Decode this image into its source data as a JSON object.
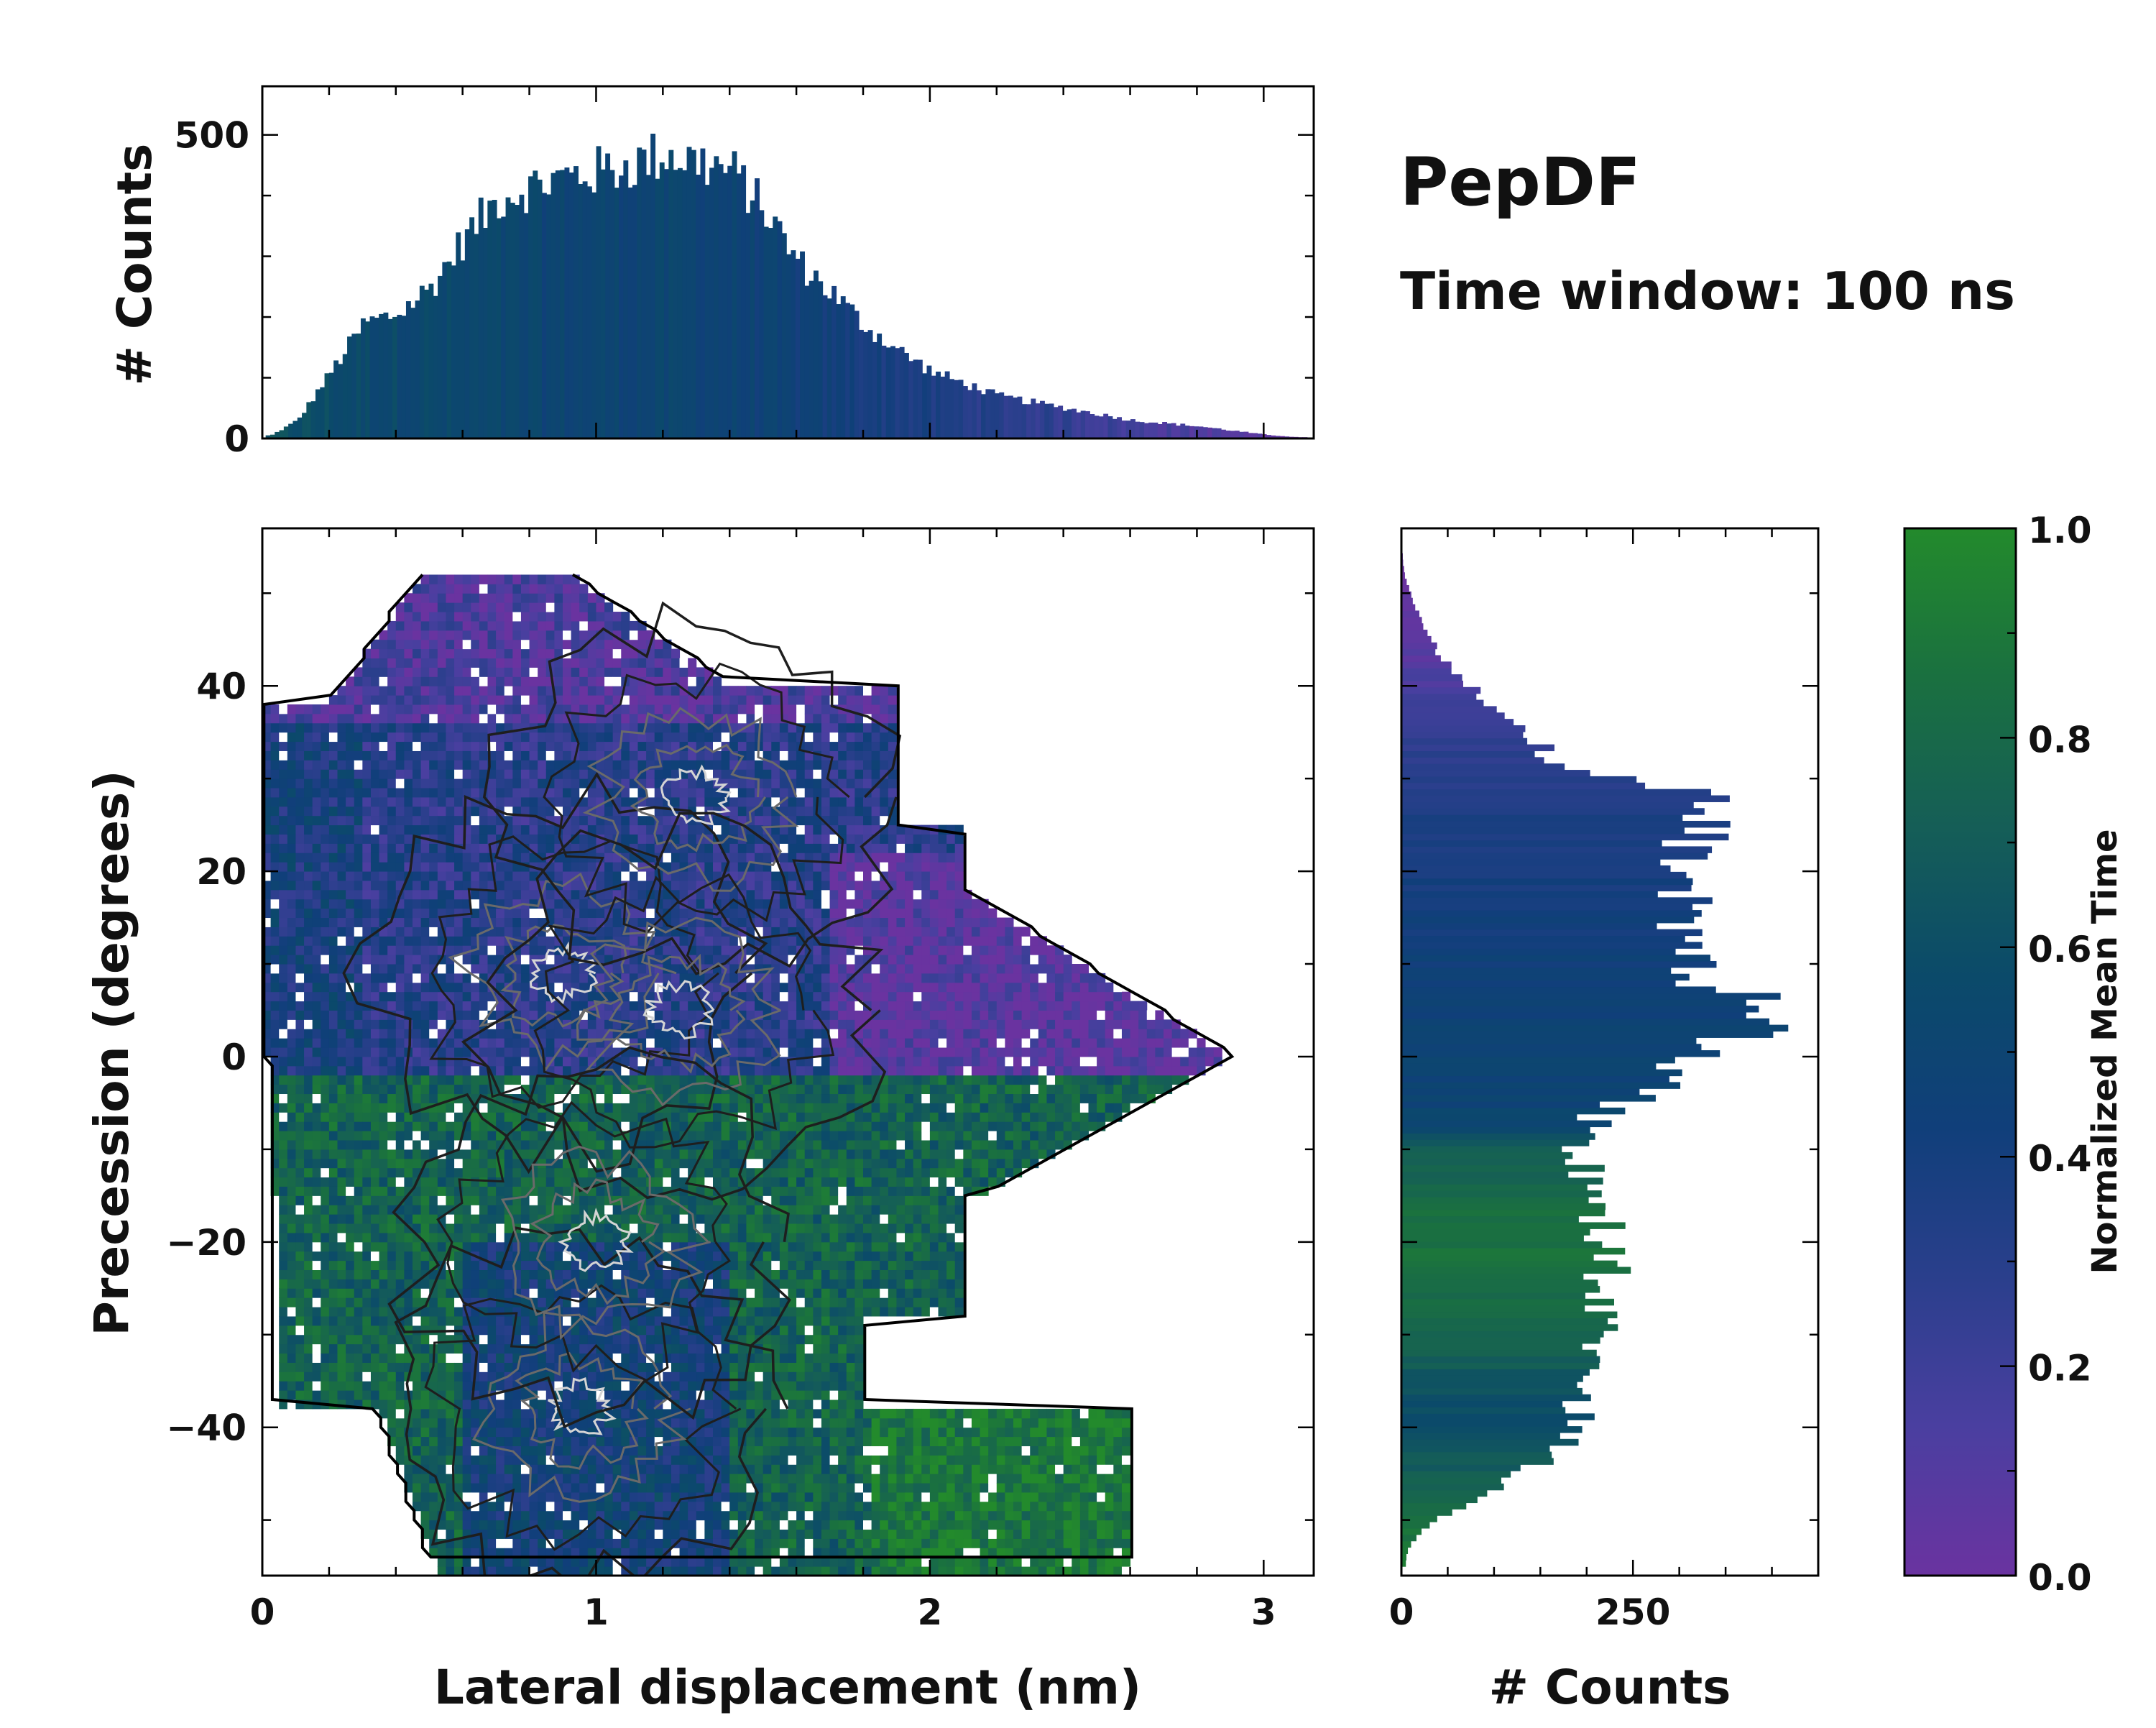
{
  "figure": {
    "title": "PepDF",
    "subtitle": "Time window: 100 ns"
  },
  "colors": {
    "scale": [
      "#6a33a0",
      "#4a3fa0",
      "#2a3f8c",
      "#103f7a",
      "#0b4a6a",
      "#155e57",
      "#1a7040",
      "#238a2c"
    ],
    "contour_dark": "#1e1e1e",
    "contour_mid": "#6a6a6a",
    "contour_light": "#d4d4d4",
    "frame": "#000000"
  },
  "chart_data": [
    {
      "id": "top_histogram",
      "type": "bar",
      "title": "",
      "xlabel": "",
      "ylabel": "# Counts",
      "xlim": [
        0,
        3.15
      ],
      "ylim": [
        0,
        580
      ],
      "yticks": [
        0,
        500
      ],
      "ytick_labels": [
        "0",
        "500"
      ],
      "profile": {
        "x": [
          0.02,
          0.1,
          0.2,
          0.3,
          0.4,
          0.5,
          0.6,
          0.7,
          0.8,
          0.9,
          1.0,
          1.1,
          1.2,
          1.3,
          1.4,
          1.5,
          1.6,
          1.7,
          1.8,
          1.9,
          2.0,
          2.2,
          2.4,
          2.6,
          2.8,
          3.0,
          3.1
        ],
        "counts": [
          5,
          30,
          110,
          190,
          205,
          250,
          330,
          395,
          415,
          430,
          440,
          450,
          470,
          455,
          440,
          375,
          290,
          240,
          185,
          145,
          110,
          70,
          50,
          30,
          20,
          6,
          2
        ],
        "color_value": [
          0.62,
          0.6,
          0.58,
          0.55,
          0.55,
          0.54,
          0.52,
          0.52,
          0.5,
          0.5,
          0.5,
          0.5,
          0.5,
          0.5,
          0.48,
          0.46,
          0.44,
          0.42,
          0.4,
          0.38,
          0.35,
          0.3,
          0.25,
          0.18,
          0.12,
          0.05,
          0.02
        ]
      }
    },
    {
      "id": "main_2d_histogram",
      "type": "heatmap",
      "title": "",
      "xlabel": "Lateral displacement (nm)",
      "ylabel": "Precession (degrees)",
      "xlim": [
        0,
        3.15
      ],
      "ylim": [
        -56,
        57
      ],
      "xticks": [
        0,
        1,
        2,
        3
      ],
      "xtick_labels": [
        "0",
        "1",
        "2",
        "3"
      ],
      "yticks": [
        -40,
        -20,
        0,
        20,
        40
      ],
      "ytick_labels": [
        "−40",
        "−20",
        "0",
        "20",
        "40"
      ],
      "color_label": "Normalized Mean Time",
      "regions": [
        {
          "name": "upper-left mixed",
          "x_range": [
            0.0,
            1.9
          ],
          "y_range": [
            0,
            55
          ],
          "mean_time": 0.3
        },
        {
          "name": "right purple lobe",
          "x_range": [
            1.6,
            3.1
          ],
          "y_range": [
            -15,
            25
          ],
          "mean_time": 0.05
        },
        {
          "name": "lower green lobe",
          "x_range": [
            0.05,
            2.5
          ],
          "y_range": [
            -54,
            0
          ],
          "mean_time": 0.85
        }
      ],
      "density_peaks": [
        {
          "x": 0.9,
          "y": 9
        },
        {
          "x": 1.3,
          "y": 28
        },
        {
          "x": 1.25,
          "y": 5
        },
        {
          "x": 0.95,
          "y": -38
        },
        {
          "x": 1.0,
          "y": -20
        }
      ]
    },
    {
      "id": "side_histogram",
      "type": "bar",
      "title": "",
      "xlabel": "# Counts",
      "ylabel": "",
      "xlim": [
        0,
        450
      ],
      "ylim": [
        -56,
        57
      ],
      "xticks": [
        0,
        250
      ],
      "xtick_labels": [
        "0",
        "250"
      ],
      "profile": {
        "y": [
          -54,
          -52,
          -50,
          -48,
          -46,
          -44,
          -42,
          -40,
          -38,
          -36,
          -34,
          -32,
          -30,
          -28,
          -26,
          -24,
          -22,
          -20,
          -18,
          -16,
          -14,
          -12,
          -10,
          -8,
          -6,
          -4,
          -2,
          0,
          2,
          4,
          6,
          8,
          10,
          12,
          14,
          16,
          18,
          20,
          22,
          24,
          26,
          28,
          30,
          32,
          34,
          36,
          38,
          40,
          42,
          44,
          46,
          48,
          50,
          52,
          54
        ],
        "counts": [
          5,
          18,
          40,
          80,
          120,
          150,
          175,
          185,
          190,
          200,
          205,
          208,
          212,
          218,
          215,
          220,
          225,
          220,
          215,
          210,
          205,
          200,
          195,
          200,
          225,
          270,
          300,
          320,
          360,
          400,
          370,
          325,
          300,
          295,
          300,
          300,
          305,
          320,
          310,
          320,
          350,
          320,
          220,
          160,
          150,
          120,
          90,
          70,
          50,
          35,
          25,
          15,
          8,
          3,
          1
        ],
        "color_value": [
          0.9,
          0.88,
          0.85,
          0.8,
          0.75,
          0.68,
          0.62,
          0.6,
          0.6,
          0.62,
          0.68,
          0.74,
          0.78,
          0.8,
          0.82,
          0.84,
          0.85,
          0.86,
          0.85,
          0.82,
          0.78,
          0.74,
          0.7,
          0.55,
          0.5,
          0.48,
          0.48,
          0.48,
          0.47,
          0.46,
          0.45,
          0.45,
          0.44,
          0.42,
          0.42,
          0.42,
          0.4,
          0.4,
          0.38,
          0.36,
          0.35,
          0.33,
          0.3,
          0.28,
          0.25,
          0.22,
          0.18,
          0.14,
          0.1,
          0.07,
          0.05,
          0.03,
          0.02,
          0.01,
          0.0
        ]
      }
    },
    {
      "id": "colorbar",
      "type": "colorbar",
      "title": "",
      "label": "Normalized Mean Time",
      "ylim": [
        0,
        1
      ],
      "ticks": [
        0.0,
        0.2,
        0.4,
        0.6,
        0.8,
        1.0
      ],
      "tick_labels": [
        "0.0",
        "0.2",
        "0.4",
        "0.6",
        "0.8",
        "1.0"
      ]
    }
  ]
}
